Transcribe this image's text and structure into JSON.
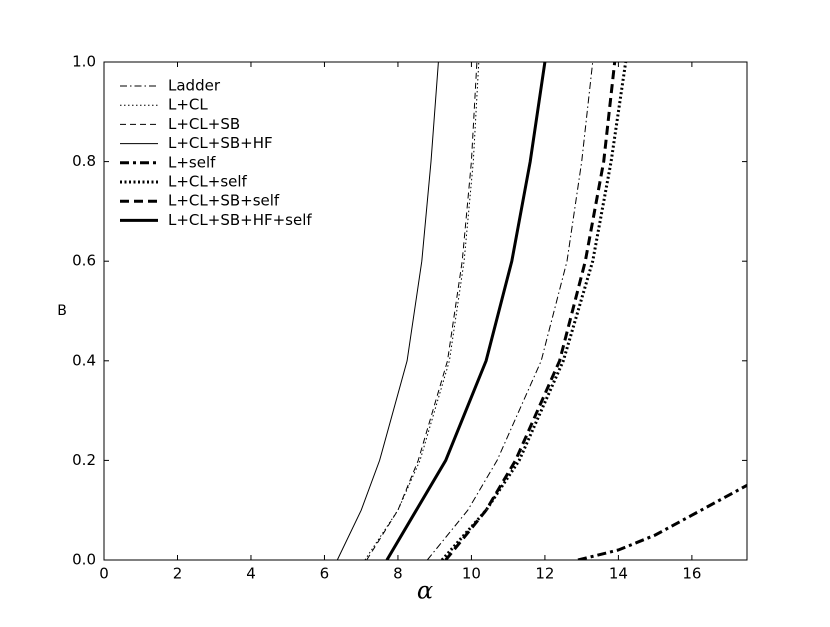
{
  "chart_data": {
    "type": "line",
    "xlabel": "α",
    "ylabel": "B",
    "xlim": [
      0,
      17.5
    ],
    "ylim": [
      0,
      1
    ],
    "xticks": [
      0,
      2,
      4,
      6,
      8,
      10,
      12,
      14,
      16
    ],
    "yticks": [
      {
        "value": 0,
        "label": "0.0"
      },
      0.2,
      0.4,
      0.6,
      0.8,
      {
        "value": 1,
        "label": "1.0"
      }
    ],
    "legend": "upper left",
    "series": [
      {
        "name": "Ladder",
        "color": "#000000",
        "linewidth": 1,
        "dash": "7 3 1.5 3",
        "x": [
          8.8,
          9.9,
          10.7,
          11.9,
          12.6,
          13.0,
          13.3
        ],
        "values": [
          0,
          0.1,
          0.2,
          0.4,
          0.6,
          0.8,
          1.0
        ]
      },
      {
        "name": "L+CL",
        "color": "#000000",
        "linewidth": 1,
        "dash": "1.5 2.5",
        "x": [
          7.1,
          8.0,
          8.6,
          9.4,
          9.8,
          10.05,
          10.2
        ],
        "values": [
          0,
          0.1,
          0.2,
          0.4,
          0.6,
          0.8,
          1.0
        ]
      },
      {
        "name": "L+CL+SB",
        "color": "#000000",
        "linewidth": 1,
        "dash": "6 4",
        "x": [
          7.15,
          8.0,
          8.55,
          9.35,
          9.75,
          10.0,
          10.15
        ],
        "values": [
          0,
          0.1,
          0.2,
          0.4,
          0.6,
          0.8,
          1.0
        ]
      },
      {
        "name": "L+CL+SB+HF",
        "color": "#000000",
        "linewidth": 1,
        "dash": "none",
        "x": [
          6.35,
          7.0,
          7.5,
          8.25,
          8.65,
          8.9,
          9.1
        ],
        "values": [
          0,
          0.1,
          0.2,
          0.4,
          0.6,
          0.8,
          1.0
        ]
      },
      {
        "name": "L+self",
        "color": "#000000",
        "linewidth": 3,
        "dash": "9 4 3 4",
        "x": [
          12.9,
          14,
          15,
          16,
          17,
          17.5
        ],
        "values": [
          0,
          0.02,
          0.05,
          0.09,
          0.13,
          0.15
        ]
      },
      {
        "name": "L+CL+self",
        "color": "#000000",
        "linewidth": 3,
        "dash": "2 2.5",
        "x": [
          9.2,
          10.4,
          11.3,
          12.5,
          13.3,
          13.8,
          14.2
        ],
        "values": [
          0,
          0.1,
          0.2,
          0.4,
          0.6,
          0.8,
          1.0
        ]
      },
      {
        "name": "L+CL+SB+self",
        "color": "#000000",
        "linewidth": 3,
        "dash": "9 5",
        "x": [
          9.3,
          10.4,
          11.2,
          12.4,
          13.1,
          13.6,
          13.9
        ],
        "values": [
          0,
          0.1,
          0.2,
          0.4,
          0.6,
          0.8,
          1.0
        ]
      },
      {
        "name": "L+CL+SB+HF+self",
        "color": "#000000",
        "linewidth": 3,
        "dash": "none",
        "x": [
          7.7,
          8.5,
          9.3,
          10.4,
          11.1,
          11.6,
          12.0
        ],
        "values": [
          0,
          0.1,
          0.2,
          0.4,
          0.6,
          0.8,
          1.0
        ]
      }
    ]
  }
}
